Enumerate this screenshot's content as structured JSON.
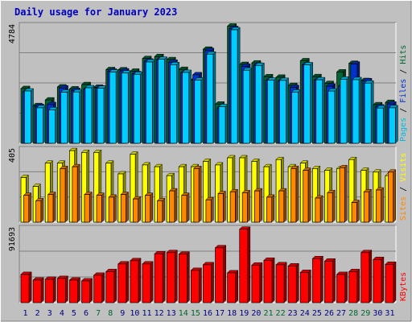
{
  "chart_data": {
    "type": "bar",
    "title": "Daily usage for January 2023",
    "x": [
      "1",
      "2",
      "3",
      "4",
      "5",
      "6",
      "7",
      "8",
      "9",
      "10",
      "11",
      "12",
      "13",
      "14",
      "15",
      "16",
      "17",
      "18",
      "19",
      "20",
      "21",
      "22",
      "23",
      "24",
      "25",
      "26",
      "27",
      "28",
      "29",
      "30",
      "31"
    ],
    "weekend_days": [
      "7",
      "8",
      "14",
      "15",
      "21",
      "22",
      "28",
      "29"
    ],
    "colors": {
      "background": "#c0c0c0",
      "frame": "#ffffff",
      "title": "#0000c0",
      "day_label": "#000080",
      "weekend_label": "#006633",
      "grid": "#808080"
    },
    "panels": [
      {
        "name": "hits-files-pages",
        "ymax_label": "4784",
        "ylim": [
          0,
          4784
        ],
        "legend": [
          {
            "text": "Pages",
            "color": "#00bbdd"
          },
          {
            "text": " / ",
            "color": "#000000"
          },
          {
            "text": "Files",
            "color": "#0033cc"
          },
          {
            "text": " / ",
            "color": "#000000"
          },
          {
            "text": "Hits",
            "color": "#006633"
          }
        ],
        "series": [
          {
            "name": "Hits",
            "color": "#006633",
            "values": [
              2230,
              1535,
              1765,
              2295,
              2215,
              2390,
              2280,
              3000,
              2990,
              2935,
              3450,
              3530,
              3405,
              3010,
              2580,
              3830,
              1595,
              4770,
              3210,
              3270,
              2710,
              2690,
              2355,
              3360,
              2715,
              2435,
              2905,
              3255,
              2555,
              1570,
              1665
            ]
          },
          {
            "name": "Files",
            "color": "#0033cc",
            "values": [
              2100,
              1500,
              1575,
              2250,
              2150,
              2205,
              2255,
              2935,
              2945,
              2835,
              3345,
              3395,
              3300,
              2875,
              2790,
              3775,
              1440,
              4670,
              3135,
              3180,
              2565,
              2535,
              2275,
              3195,
              2580,
              2325,
              2335,
              3225,
              2545,
              1480,
              1600
            ]
          },
          {
            "name": "Pages",
            "color": "#00ccff",
            "values": [
              2130,
              1445,
              1365,
              2080,
              2090,
              2260,
              2240,
              2900,
              2860,
              2810,
              3310,
              3420,
              3200,
              2885,
              2570,
              3630,
              1495,
              4620,
              2975,
              3170,
              2570,
              2560,
              2085,
              3195,
              2585,
              2125,
              2610,
              2590,
              2450,
              1435,
              1445
            ]
          }
        ]
      },
      {
        "name": "visits-sites",
        "ymax_label": "405",
        "ylim": [
          0,
          405
        ],
        "legend": [
          {
            "text": "Sites",
            "color": "#ff8800"
          },
          {
            "text": " / ",
            "color": "#000000"
          },
          {
            "text": "Visits",
            "color": "#ffff00"
          }
        ],
        "series": [
          {
            "name": "Visits",
            "color": "#ffff00",
            "values": [
              250,
              200,
              330,
              330,
              400,
              390,
              390,
              330,
              270,
              380,
              320,
              310,
              260,
              310,
              310,
              340,
              320,
              360,
              360,
              340,
              310,
              350,
              310,
              330,
              300,
              290,
              300,
              350,
              290,
              280,
              260
            ]
          },
          {
            "name": "Sites",
            "color": "#ff8800",
            "values": [
              150,
              120,
              155,
              300,
              310,
              155,
              150,
              140,
              155,
              130,
              150,
              120,
              175,
              150,
              300,
              125,
              160,
              170,
              165,
              175,
              140,
              175,
              300,
              290,
              135,
              165,
              305,
              110,
              170,
              180,
              280
            ]
          }
        ]
      },
      {
        "name": "kbytes",
        "ymax_label": "91693",
        "ylim": [
          0,
          91693
        ],
        "legend": [
          {
            "text": "KBytes",
            "color": "#ff0000"
          }
        ],
        "series": [
          {
            "name": "KBytes",
            "color": "#ff0000",
            "values": [
              35000,
              28000,
              29000,
              30000,
              28000,
              27000,
              34000,
              38500,
              48000,
              52000,
              48000,
              60500,
              62000,
              60000,
              40000,
              47000,
              68000,
              37000,
              91000,
              46500,
              52500,
              47000,
              45500,
              37500,
              54500,
              51500,
              35000,
              38500,
              62000,
              53500,
              47500
            ]
          }
        ]
      }
    ]
  }
}
